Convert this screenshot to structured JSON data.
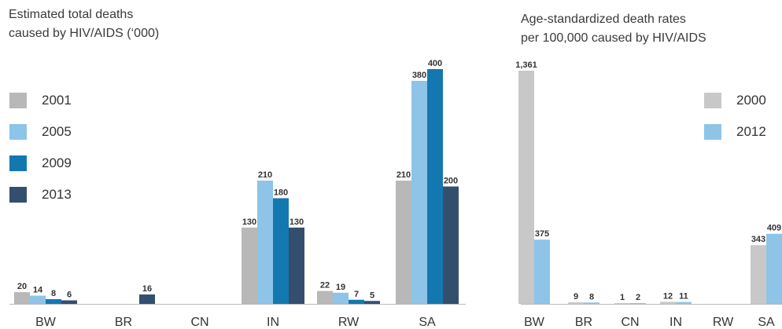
{
  "chart_data": [
    {
      "type": "bar",
      "title_lines": [
        "Estimated total deaths",
        "caused by HIV/AIDS (‘000)"
      ],
      "categories": [
        "BW",
        "BR",
        "CN",
        "IN",
        "RW",
        "SA"
      ],
      "series": [
        {
          "name": "2001",
          "color": "#b8b8b8",
          "values": [
            20,
            null,
            null,
            130,
            22,
            210
          ],
          "labels": [
            "20",
            "",
            "",
            "130",
            "22",
            "210"
          ]
        },
        {
          "name": "2005",
          "color": "#8ec4e8",
          "values": [
            14,
            null,
            null,
            210,
            19,
            380
          ],
          "labels": [
            "14",
            "",
            "",
            "210",
            "19",
            "380"
          ]
        },
        {
          "name": "2009",
          "color": "#1478b0",
          "values": [
            8,
            null,
            null,
            180,
            7,
            400
          ],
          "labels": [
            "8",
            "",
            "",
            "180",
            "7",
            "400"
          ]
        },
        {
          "name": "2013",
          "color": "#344e6e",
          "values": [
            6,
            16,
            null,
            130,
            5,
            200
          ],
          "labels": [
            "6",
            "16",
            "",
            "130",
            "5",
            "200"
          ]
        }
      ],
      "ylim": [
        0,
        400
      ],
      "legend_position": "top-left"
    },
    {
      "type": "bar",
      "title_lines": [
        "Age-standardized death rates",
        "per 100,000 caused by HIV/AIDS"
      ],
      "categories": [
        "BW",
        "BR",
        "CN",
        "IN",
        "RW",
        "SA"
      ],
      "series": [
        {
          "name": "2000",
          "color": "#c8c8c8",
          "values": [
            1361,
            9,
            1,
            12,
            null,
            343
          ],
          "labels": [
            "1,361",
            "9",
            "1",
            "12",
            "",
            "343"
          ]
        },
        {
          "name": "2012",
          "color": "#8ec4e8",
          "values": [
            375,
            8,
            2,
            11,
            null,
            409
          ],
          "labels": [
            "375",
            "8",
            "2",
            "11",
            "",
            "409"
          ]
        }
      ],
      "ylim": [
        0,
        1361
      ],
      "legend_position": "top-right"
    }
  ]
}
